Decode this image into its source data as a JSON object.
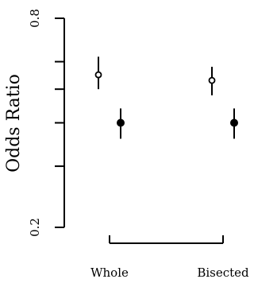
{
  "chart_data": {
    "type": "scatter",
    "ylabel": "Odds Ratio",
    "xlabel": "",
    "y_scale": "log",
    "ylim": [
      0.2,
      0.8
    ],
    "y_ticks": [
      {
        "value": 0.8,
        "label": "0.8"
      },
      {
        "value": 0.2,
        "label": "0.2"
      }
    ],
    "categories": [
      "Whole",
      "Bisected"
    ],
    "grid": false,
    "legend": "none",
    "series": [
      {
        "marker": "open",
        "values": [
          {
            "category": "Whole",
            "y": 0.55,
            "lower": 0.5,
            "upper": 0.62
          },
          {
            "category": "Bisected",
            "y": 0.53,
            "lower": 0.48,
            "upper": 0.58
          }
        ]
      },
      {
        "marker": "filled",
        "values": [
          {
            "category": "Whole",
            "y": 0.4,
            "lower": 0.36,
            "upper": 0.44
          },
          {
            "category": "Bisected",
            "y": 0.4,
            "lower": 0.36,
            "upper": 0.44
          }
        ]
      }
    ]
  }
}
